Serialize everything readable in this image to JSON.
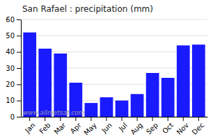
{
  "chart_data": {
    "type": "bar",
    "title": "San Rafael : precipitation (mm)",
    "categories": [
      "Jan",
      "Feb",
      "Mar",
      "Apr",
      "May",
      "Jun",
      "Jul",
      "Aug",
      "Sep",
      "Oct",
      "Nov",
      "Dec"
    ],
    "values": [
      52,
      42,
      39,
      21,
      8.5,
      12,
      10,
      14,
      27,
      24,
      44,
      44.5
    ],
    "color": "#1a1aff",
    "ylim": [
      0,
      60
    ],
    "yticks": [
      0,
      10,
      20,
      30,
      40,
      50,
      60
    ],
    "grid": true,
    "annotations": [
      "www.allmetsat.com"
    ]
  }
}
